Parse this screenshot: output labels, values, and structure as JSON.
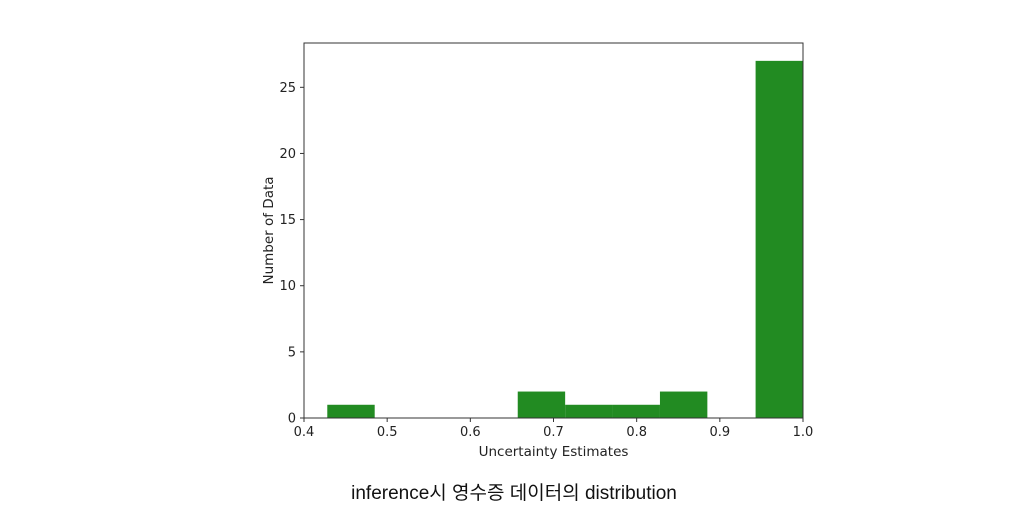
{
  "caption": "inference시 영수증 데이터의 distribution",
  "chart_data": {
    "type": "bar",
    "xlabel": "Uncertainty Estimates",
    "ylabel": "Number of Data",
    "xlim": [
      0.4,
      1.0
    ],
    "ylim": [
      0,
      28.35
    ],
    "xticks": [
      0.4,
      0.5,
      0.6,
      0.7,
      0.8,
      0.9,
      1.0
    ],
    "xtick_labels": [
      "0.4",
      "0.5",
      "0.6",
      "0.7",
      "0.8",
      "0.9",
      "1.0"
    ],
    "yticks": [
      0,
      5,
      10,
      15,
      20,
      25
    ],
    "ytick_labels": [
      "0",
      "5",
      "10",
      "15",
      "20",
      "25"
    ],
    "bar_color": "#228b22",
    "bins": [
      {
        "x0": 0.428,
        "x1": 0.485,
        "count": 1
      },
      {
        "x0": 0.485,
        "x1": 0.542,
        "count": 0
      },
      {
        "x0": 0.542,
        "x1": 0.6,
        "count": 0
      },
      {
        "x0": 0.6,
        "x1": 0.657,
        "count": 0
      },
      {
        "x0": 0.657,
        "x1": 0.714,
        "count": 2
      },
      {
        "x0": 0.714,
        "x1": 0.771,
        "count": 1
      },
      {
        "x0": 0.771,
        "x1": 0.828,
        "count": 1
      },
      {
        "x0": 0.828,
        "x1": 0.885,
        "count": 2
      },
      {
        "x0": 0.885,
        "x1": 0.943,
        "count": 0
      },
      {
        "x0": 0.943,
        "x1": 1.0,
        "count": 27
      }
    ],
    "grid": false,
    "legend": "none"
  }
}
